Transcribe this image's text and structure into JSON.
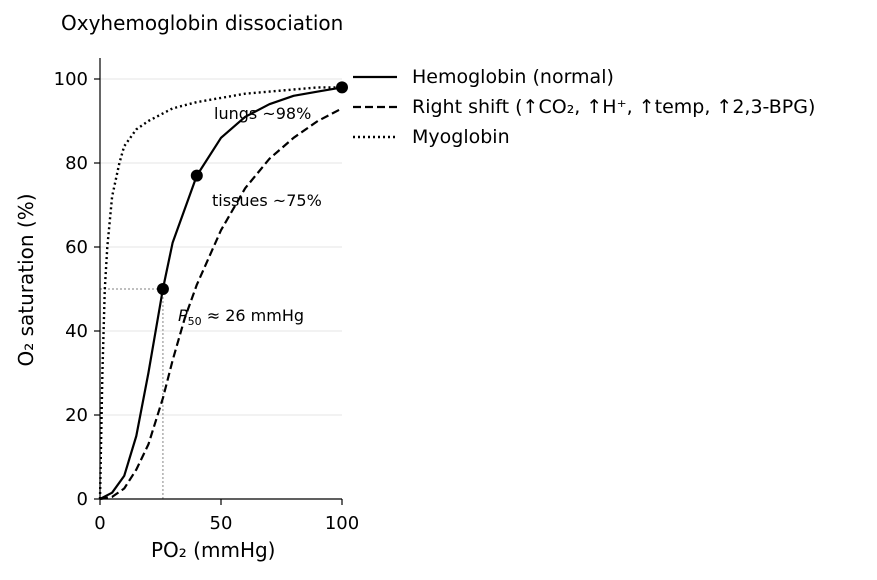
{
  "chart_data": {
    "type": "line",
    "title": "Oxyhemoglobin dissociation",
    "xlabel": "PO₂ (mmHg)",
    "ylabel": "O₂ saturation (%)",
    "xlim": [
      0,
      100
    ],
    "ylim": [
      0,
      105
    ],
    "xticks": [
      0,
      50,
      100
    ],
    "yticks": [
      0,
      20,
      40,
      60,
      80,
      100
    ],
    "grid": "horizontal",
    "legend_position": "outside-right",
    "series": [
      {
        "name": "Hemoglobin (normal)",
        "style": "solid",
        "color": "#000000",
        "x": [
          0,
          5,
          10,
          15,
          20,
          26,
          30,
          40,
          50,
          60,
          70,
          80,
          90,
          100
        ],
        "y": [
          0,
          1.5,
          5.5,
          15,
          30,
          50,
          61,
          77,
          86,
          91,
          94,
          96,
          97,
          98
        ]
      },
      {
        "name": "Right shift (↑CO₂, ↑H⁺, ↑temp, ↑2,3-BPG)",
        "style": "dashed",
        "color": "#000000",
        "x": [
          0,
          5,
          10,
          15,
          20,
          26,
          30,
          35,
          40,
          50,
          60,
          70,
          80,
          90,
          100
        ],
        "y": [
          0,
          0.5,
          2.5,
          7,
          13,
          24,
          33,
          43,
          51,
          64,
          74,
          81,
          86,
          90,
          93
        ]
      },
      {
        "name": "Myoglobin",
        "style": "dotted",
        "color": "#000000",
        "x": [
          0,
          1,
          2,
          3,
          5,
          8,
          10,
          15,
          20,
          30,
          40,
          50,
          60,
          70,
          80,
          90,
          100
        ],
        "y": [
          0,
          30,
          50,
          60,
          72,
          80,
          84,
          88,
          90,
          93,
          94.5,
          95.5,
          96.5,
          97,
          97.5,
          98,
          98
        ]
      }
    ],
    "markers": [
      {
        "x": 26,
        "y": 50
      },
      {
        "x": 40,
        "y": 77
      },
      {
        "x": 100,
        "y": 98
      }
    ],
    "reference_lines": [
      {
        "x": 26,
        "y": 50,
        "color": "#999999"
      }
    ],
    "annotations": [
      {
        "text": "lungs ~98%",
        "x": 47,
        "y": 91
      },
      {
        "text": "tissues ~75%",
        "x": 46,
        "y": 70
      },
      {
        "text_main": "P",
        "text_sub": "50",
        "text_rest": " ≈ 26 mmHg",
        "x": 32,
        "y": 43
      }
    ]
  }
}
